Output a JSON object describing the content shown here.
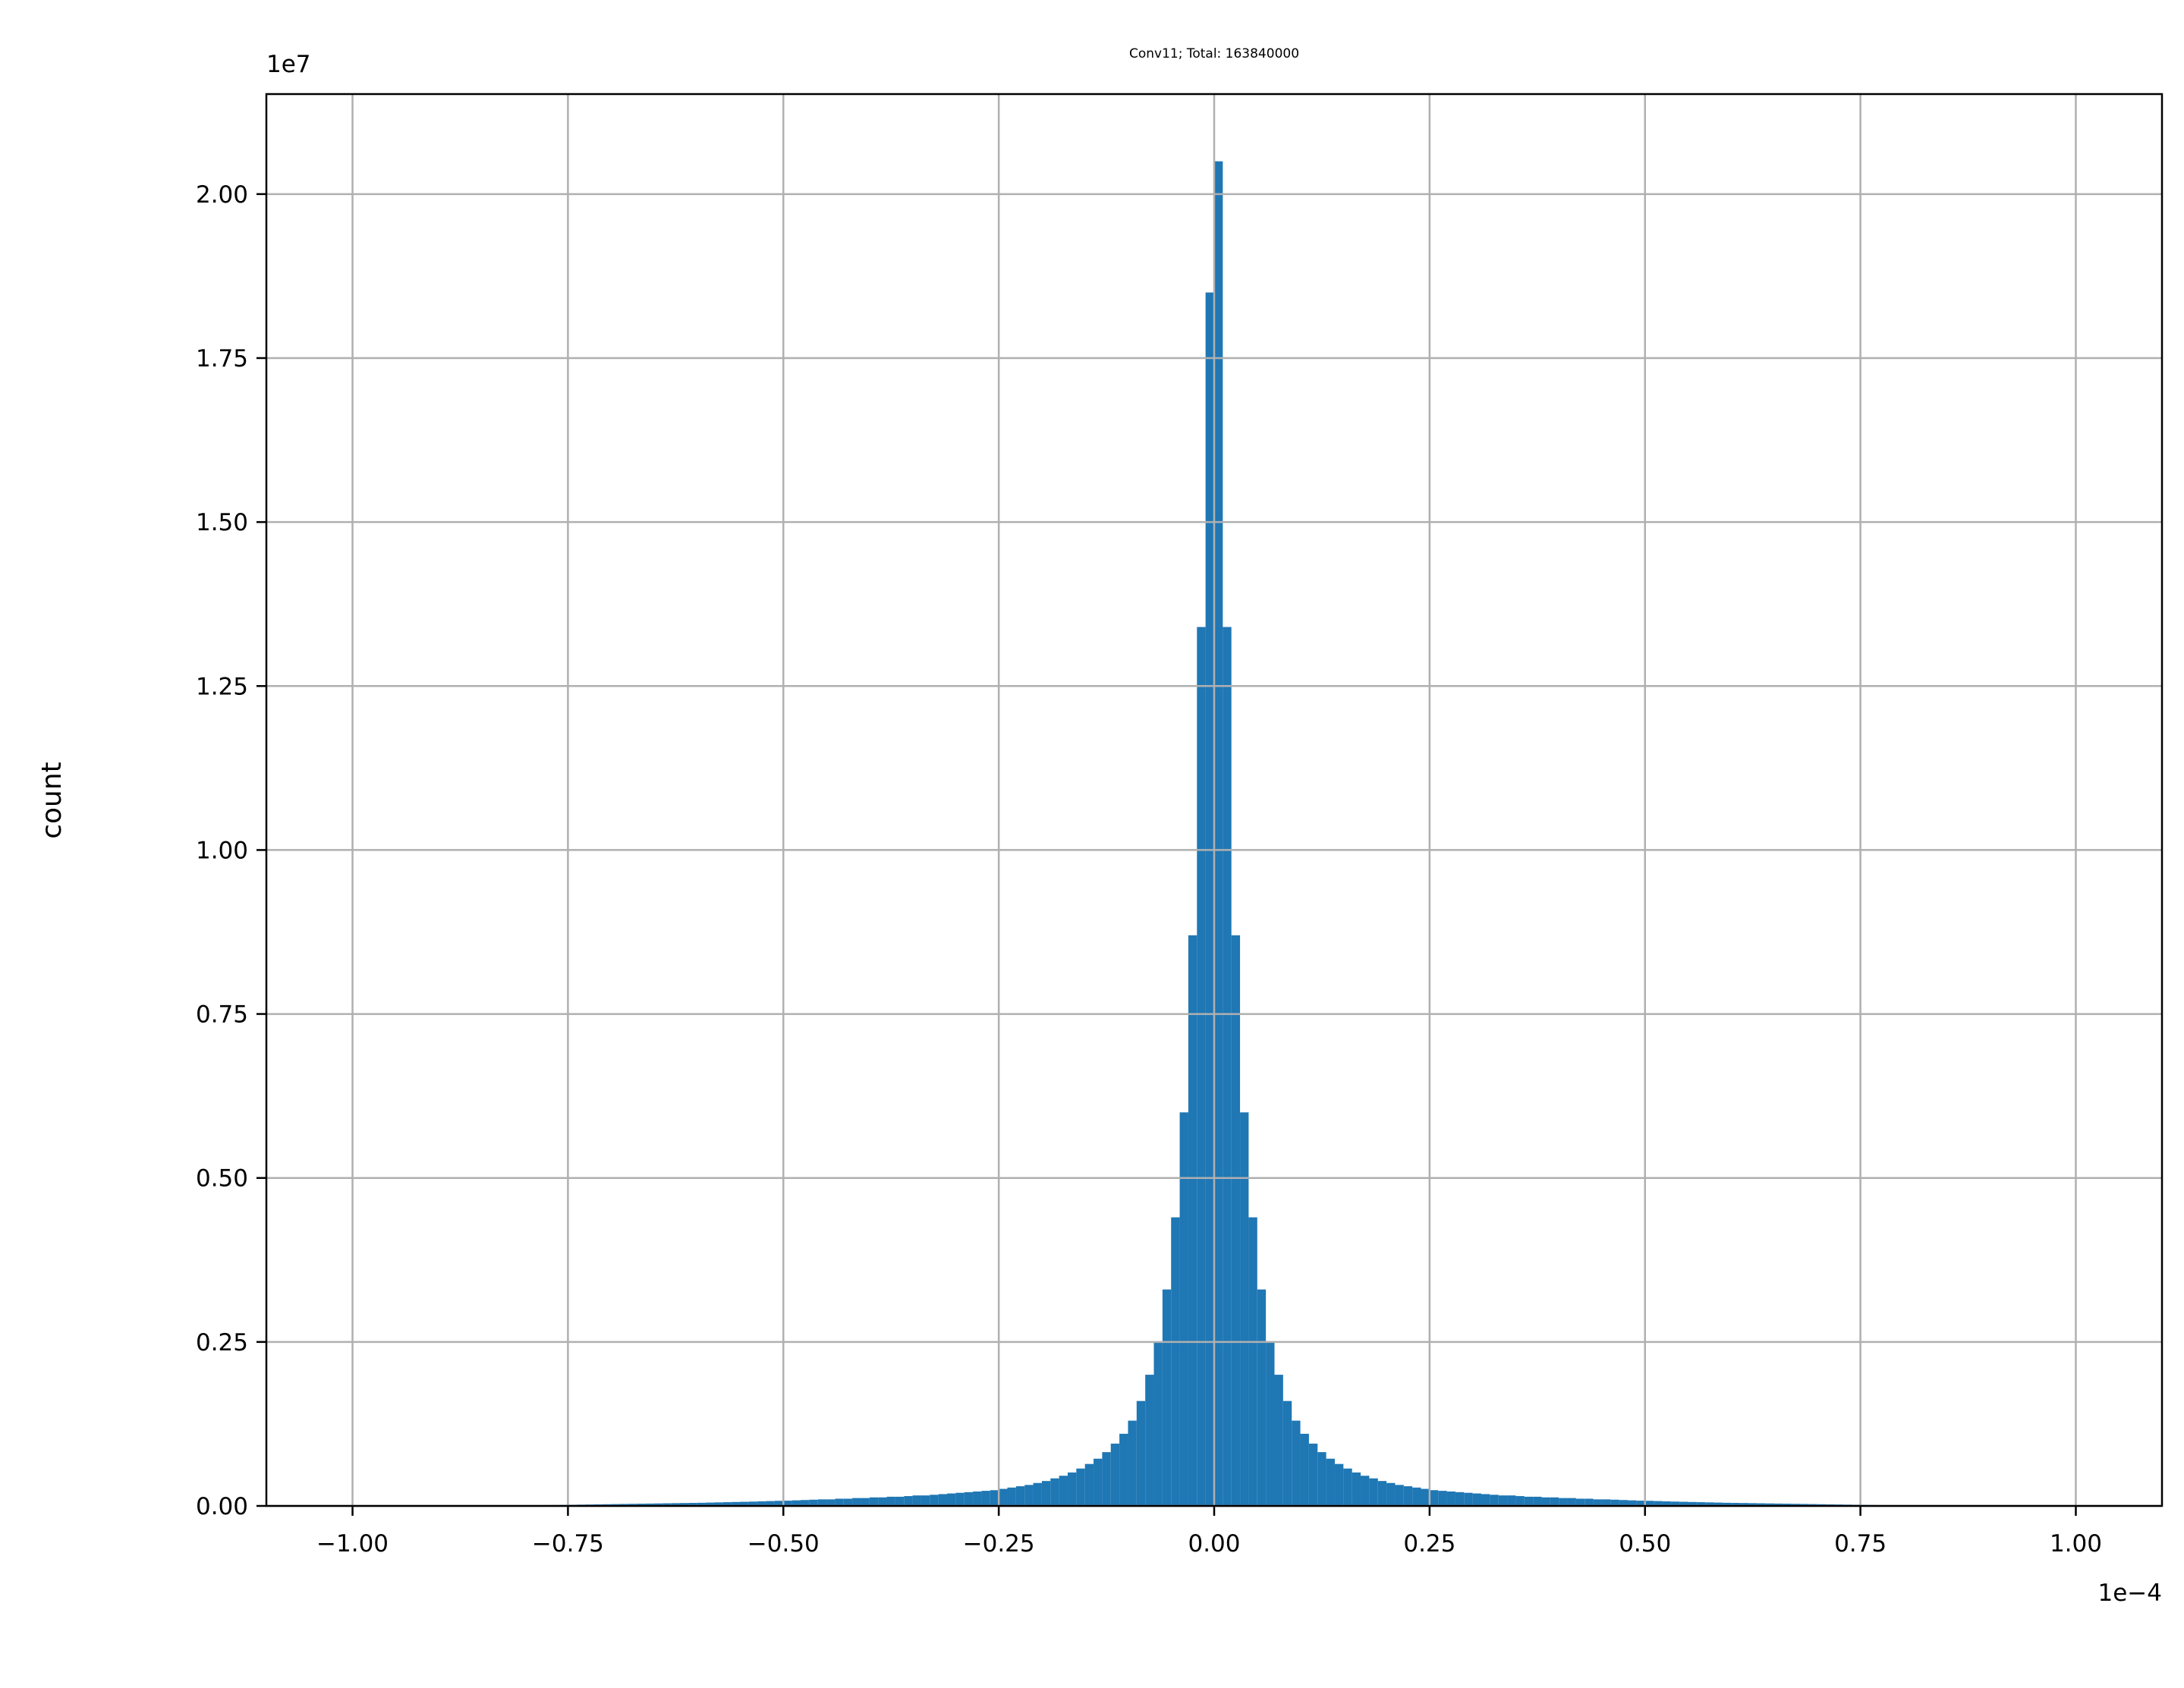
{
  "chart_data": {
    "type": "histogram",
    "title": "Conv11; Total: 163840000",
    "ylabel": "count",
    "x_offset_label": "1e−4",
    "y_offset_label": "1e7",
    "color": "#1f77b4",
    "grid": true,
    "xlim": [
      -1.1,
      1.1
    ],
    "ylim": [
      0,
      2.1525
    ],
    "xticks": [
      {
        "value": -1,
        "label": "−1.00"
      },
      {
        "value": -0.75,
        "label": "−0.75"
      },
      {
        "value": -0.5,
        "label": "−0.50"
      },
      {
        "value": -0.25,
        "label": "−0.25"
      },
      {
        "value": 0,
        "label": "0.00"
      },
      {
        "value": 0.25,
        "label": "0.25"
      },
      {
        "value": 0.5,
        "label": "0.50"
      },
      {
        "value": 0.75,
        "label": "0.75"
      },
      {
        "value": 1,
        "label": "1.00"
      }
    ],
    "yticks": [
      {
        "value": 0,
        "label": "0.00"
      },
      {
        "value": 0.25,
        "label": "0.25"
      },
      {
        "value": 0.5,
        "label": "0.50"
      },
      {
        "value": 0.75,
        "label": "0.75"
      },
      {
        "value": 1,
        "label": "1.00"
      },
      {
        "value": 1.25,
        "label": "1.25"
      },
      {
        "value": 1.5,
        "label": "1.50"
      },
      {
        "value": 1.75,
        "label": "1.75"
      },
      {
        "value": 2,
        "label": "2.00"
      }
    ],
    "bins": [
      -1,
      -0.99,
      -0.98,
      -0.97,
      -0.96,
      -0.95,
      -0.94,
      -0.93,
      -0.92,
      -0.91,
      -0.9,
      -0.89,
      -0.88,
      -0.87,
      -0.86,
      -0.85,
      -0.84,
      -0.83,
      -0.82,
      -0.81,
      -0.8,
      -0.79,
      -0.78,
      -0.77,
      -0.76,
      -0.75,
      -0.74,
      -0.73,
      -0.72,
      -0.71,
      -0.7,
      -0.69,
      -0.68,
      -0.67,
      -0.66,
      -0.65,
      -0.64,
      -0.63,
      -0.62,
      -0.61,
      -0.6,
      -0.59,
      -0.58,
      -0.57,
      -0.56,
      -0.55,
      -0.54,
      -0.53,
      -0.52,
      -0.51,
      -0.5,
      -0.49,
      -0.48,
      -0.47,
      -0.46,
      -0.45,
      -0.44,
      -0.43,
      -0.42,
      -0.41,
      -0.4,
      -0.39,
      -0.38,
      -0.37,
      -0.36,
      -0.35,
      -0.34,
      -0.33,
      -0.32,
      -0.31,
      -0.3,
      -0.29,
      -0.28,
      -0.27,
      -0.26,
      -0.25,
      -0.24,
      -0.23,
      -0.22,
      -0.21,
      -0.2,
      -0.19,
      -0.18,
      -0.17,
      -0.16,
      -0.15,
      -0.14,
      -0.13,
      -0.12,
      -0.11,
      -0.1,
      -0.09,
      -0.08,
      -0.07,
      -0.06,
      -0.05,
      -0.04,
      -0.03,
      -0.02,
      -0.01,
      0,
      0.01,
      0.02,
      0.03,
      0.04,
      0.05,
      0.06,
      0.07,
      0.08,
      0.09,
      0.1,
      0.11,
      0.12,
      0.13,
      0.14,
      0.15,
      0.16,
      0.17,
      0.18,
      0.19,
      0.2,
      0.21,
      0.22,
      0.23,
      0.24,
      0.25,
      0.26,
      0.27,
      0.28,
      0.29,
      0.3,
      0.31,
      0.32,
      0.33,
      0.34,
      0.35,
      0.36,
      0.37,
      0.38,
      0.39,
      0.4,
      0.41,
      0.42,
      0.43,
      0.44,
      0.45,
      0.46,
      0.47,
      0.48,
      0.49,
      0.5,
      0.51,
      0.52,
      0.53,
      0.54,
      0.55,
      0.56,
      0.57,
      0.58,
      0.59,
      0.6,
      0.61,
      0.62,
      0.63,
      0.64,
      0.65,
      0.66,
      0.67,
      0.68,
      0.69,
      0.7,
      0.71,
      0.72,
      0.73,
      0.74,
      0.75,
      0.76,
      0.77,
      0.78,
      0.79,
      0.8,
      0.81,
      0.82,
      0.83,
      0.84,
      0.85,
      0.86,
      0.87,
      0.88,
      0.89,
      0.9,
      0.91,
      0.92,
      0.93,
      0.94,
      0.95,
      0.96,
      0.97,
      0.98,
      0.99,
      1
    ],
    "values": [
      0,
      0,
      0,
      0,
      0,
      0,
      0,
      0,
      0,
      0,
      0,
      0,
      0,
      0,
      0,
      0,
      0,
      0,
      0,
      0,
      0.0008,
      0.001,
      0.0012,
      0.0014,
      0.0016,
      0.0018,
      0.002,
      0.0022,
      0.0024,
      0.0026,
      0.0028,
      0.003,
      0.0032,
      0.0034,
      0.0036,
      0.0038,
      0.004,
      0.0042,
      0.0044,
      0.0046,
      0.0048,
      0.0051,
      0.0054,
      0.0057,
      0.006,
      0.0063,
      0.0066,
      0.007,
      0.0074,
      0.0078,
      0.008,
      0.0085,
      0.009,
      0.0095,
      0.01,
      0.01,
      0.011,
      0.011,
      0.012,
      0.012,
      0.013,
      0.013,
      0.014,
      0.014,
      0.015,
      0.016,
      0.016,
      0.017,
      0.018,
      0.019,
      0.02,
      0.021,
      0.022,
      0.023,
      0.024,
      0.026,
      0.028,
      0.03,
      0.032,
      0.035,
      0.038,
      0.042,
      0.046,
      0.051,
      0.057,
      0.064,
      0.072,
      0.082,
      0.095,
      0.11,
      0.13,
      0.16,
      0.2,
      0.25,
      0.33,
      0.44,
      0.6,
      0.87,
      1.34,
      1.85,
      2.05,
      1.34,
      0.87,
      0.6,
      0.44,
      0.33,
      0.25,
      0.2,
      0.16,
      0.13,
      0.11,
      0.095,
      0.082,
      0.072,
      0.064,
      0.057,
      0.051,
      0.046,
      0.042,
      0.038,
      0.035,
      0.032,
      0.03,
      0.028,
      0.026,
      0.024,
      0.023,
      0.022,
      0.021,
      0.02,
      0.019,
      0.018,
      0.017,
      0.016,
      0.016,
      0.015,
      0.014,
      0.014,
      0.013,
      0.013,
      0.012,
      0.012,
      0.011,
      0.011,
      0.01,
      0.01,
      0.0095,
      0.009,
      0.0085,
      0.008,
      0.0078,
      0.0074,
      0.007,
      0.0066,
      0.0063,
      0.006,
      0.0057,
      0.0054,
      0.0051,
      0.0048,
      0.0046,
      0.0044,
      0.0042,
      0.004,
      0.0038,
      0.0036,
      0.0034,
      0.0032,
      0.003,
      0.0028,
      0.0026,
      0.0024,
      0.0022,
      0.002,
      0.0018,
      0.0016,
      0.0014,
      0.0012,
      0.001,
      0.0008,
      0,
      0,
      0,
      0,
      0,
      0,
      0,
      0,
      0,
      0,
      0,
      0,
      0,
      0,
      0,
      0,
      0,
      0,
      0,
      0
    ]
  }
}
